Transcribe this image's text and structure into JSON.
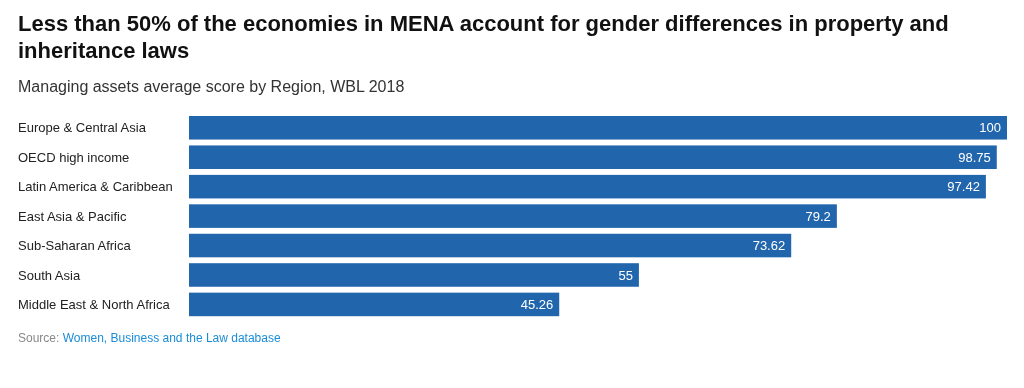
{
  "chart_data": {
    "type": "bar",
    "orientation": "horizontal",
    "title": "Less than 50% of the economies in MENA account for gender differences in property and inheritance laws",
    "subtitle": "Managing assets average score by Region, WBL 2018",
    "categories": [
      "Europe & Central Asia",
      "OECD high income",
      "Latin America & Caribbean",
      "East Asia & Pacific",
      "Sub-Saharan Africa",
      "South Asia",
      "Middle East & North Africa"
    ],
    "values": [
      100,
      98.75,
      97.42,
      79.2,
      73.62,
      55,
      45.26
    ],
    "color": "#2166ac",
    "data_labels": true,
    "annotations": [
      "Source: Women, Business and the Law database"
    ]
  }
}
